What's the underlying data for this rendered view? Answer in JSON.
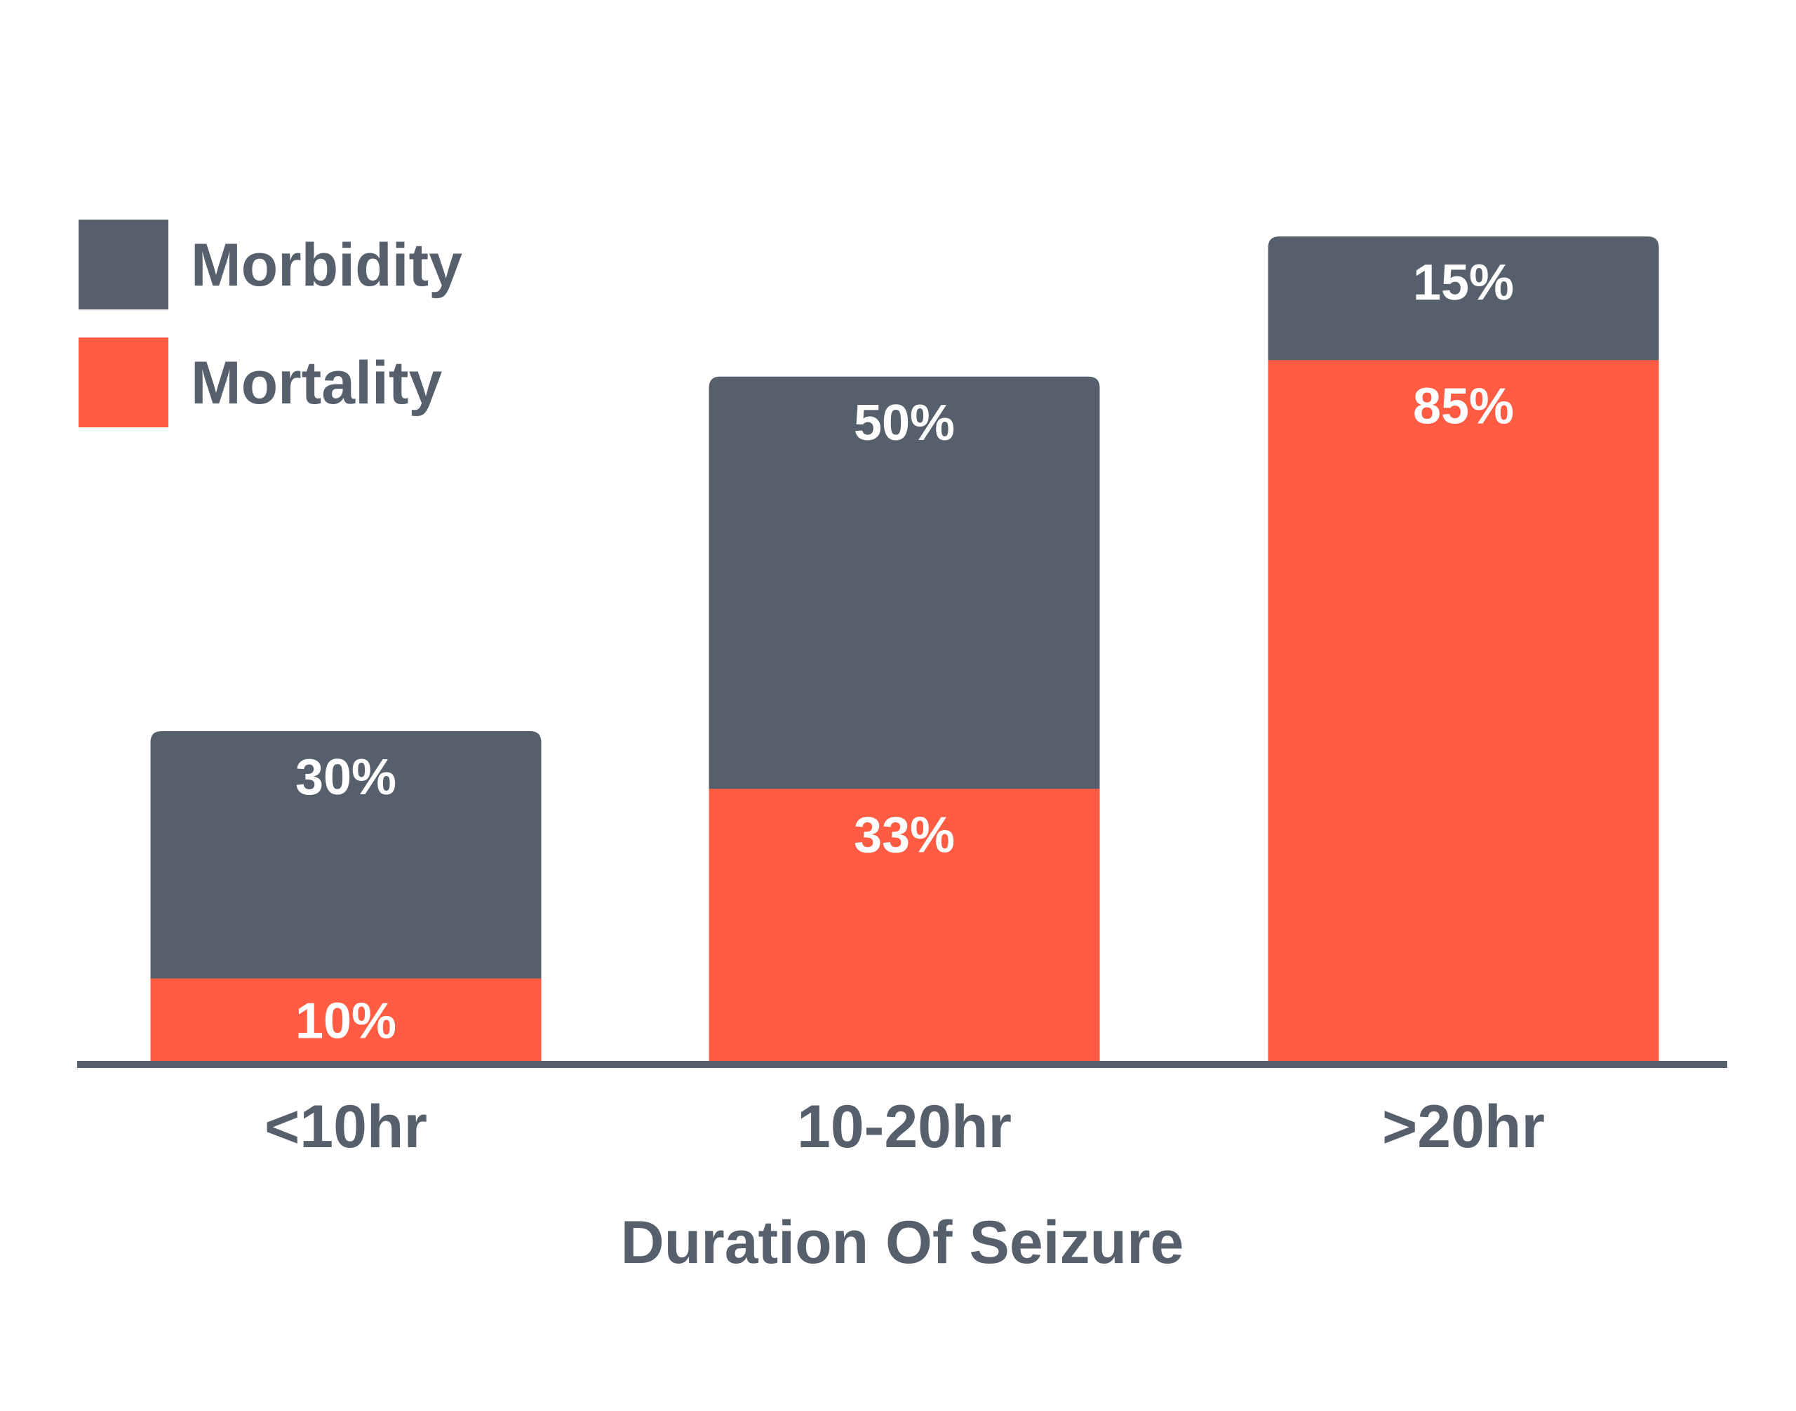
{
  "chart_data": {
    "type": "bar",
    "stacked": true,
    "categories": [
      "<10hr",
      "10-20hr",
      ">20hr"
    ],
    "series": [
      {
        "name": "Mortality",
        "values": [
          10,
          33,
          85
        ],
        "labels": [
          "10%",
          "33%",
          "85%"
        ],
        "color": "#ff5c43"
      },
      {
        "name": "Morbidity",
        "values": [
          30,
          50,
          15
        ],
        "labels": [
          "30%",
          "50%",
          "15%"
        ],
        "color": "#56606c"
      }
    ],
    "xlabel": "Duration Of Seizure",
    "ylabel": "",
    "ylim": [
      0,
      100
    ],
    "grid": false,
    "legend": "top-left",
    "legend_order": [
      "Morbidity",
      "Mortality"
    ],
    "text_color": "#56606c",
    "label_color": "#ffffff",
    "axis_color": "#56606c"
  }
}
